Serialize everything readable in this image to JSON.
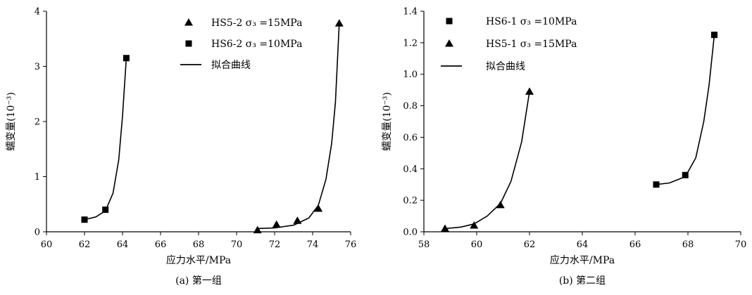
{
  "chart_data": [
    {
      "type": "scatter",
      "xlabel": "应力水平/MPa",
      "ylabel": "蠕变量(10⁻³)",
      "xlim": [
        60,
        76
      ],
      "ylim": [
        0,
        4
      ],
      "xticks": [
        "60",
        "62",
        "64",
        "66",
        "68",
        "70",
        "72",
        "74",
        "76"
      ],
      "yticks": [
        "0",
        "1",
        "2",
        "3",
        "4"
      ],
      "caption": "(a) 第一组",
      "legend_position": "top-right",
      "legend": [
        {
          "marker": "triangle",
          "text": "HS5-2  σ₃ =15MPa"
        },
        {
          "marker": "square",
          "text": "HS6-2  σ₃ =10MPa"
        },
        {
          "marker": "line",
          "text": "拟合曲线"
        }
      ],
      "series": [
        {
          "name": "HS5-2 σ₃ =15MPa",
          "marker": "triangle",
          "points": [
            [
              71.1,
              0.03
            ],
            [
              72.1,
              0.13
            ],
            [
              73.2,
              0.2
            ],
            [
              74.3,
              0.42
            ],
            [
              75.4,
              3.78
            ]
          ],
          "fit": [
            [
              71.1,
              0.06
            ],
            [
              72.0,
              0.07
            ],
            [
              73.0,
              0.12
            ],
            [
              73.8,
              0.25
            ],
            [
              74.3,
              0.48
            ],
            [
              74.7,
              0.95
            ],
            [
              75.0,
              1.6
            ],
            [
              75.2,
              2.35
            ],
            [
              75.4,
              3.78
            ]
          ]
        },
        {
          "name": "HS6-2 σ₃ =10MPa",
          "marker": "square",
          "points": [
            [
              62.0,
              0.22
            ],
            [
              63.1,
              0.4
            ],
            [
              64.2,
              3.15
            ]
          ],
          "fit": [
            [
              62.0,
              0.22
            ],
            [
              62.6,
              0.27
            ],
            [
              63.1,
              0.38
            ],
            [
              63.5,
              0.7
            ],
            [
              63.8,
              1.3
            ],
            [
              64.0,
              2.1
            ],
            [
              64.2,
              3.15
            ]
          ]
        }
      ]
    },
    {
      "type": "scatter",
      "xlabel": "应力水平/MPa",
      "ylabel": "蠕变量(10⁻³)",
      "xlim": [
        58,
        70
      ],
      "ylim": [
        0,
        1.4
      ],
      "xticks": [
        "58",
        "60",
        "62",
        "64",
        "66",
        "68",
        "70"
      ],
      "yticks": [
        "0.0",
        "0.2",
        "0.4",
        "0.6",
        "0.8",
        "1.0",
        "1.2",
        "1.4"
      ],
      "caption": "(b) 第二组",
      "legend_position": "top-left",
      "legend": [
        {
          "marker": "square",
          "text": "HS6-1  σ₃ =10MPa"
        },
        {
          "marker": "triangle",
          "text": "HS5-1  σ₃ =15MPa"
        },
        {
          "marker": "line",
          "text": "拟合曲线"
        }
      ],
      "series": [
        {
          "name": "HS6-1 σ₃ =10MPa",
          "marker": "square",
          "points": [
            [
              66.8,
              0.3
            ],
            [
              67.9,
              0.36
            ],
            [
              69.0,
              1.25
            ]
          ],
          "fit": [
            [
              66.8,
              0.3
            ],
            [
              67.3,
              0.31
            ],
            [
              67.9,
              0.35
            ],
            [
              68.3,
              0.47
            ],
            [
              68.6,
              0.7
            ],
            [
              68.8,
              0.93
            ],
            [
              69.0,
              1.25
            ]
          ]
        },
        {
          "name": "HS5-1 σ₃ =15MPa",
          "marker": "triangle",
          "points": [
            [
              58.8,
              0.02
            ],
            [
              59.9,
              0.04
            ],
            [
              60.9,
              0.17
            ],
            [
              62.0,
              0.89
            ]
          ],
          "fit": [
            [
              58.8,
              0.02
            ],
            [
              59.4,
              0.03
            ],
            [
              59.9,
              0.05
            ],
            [
              60.4,
              0.1
            ],
            [
              60.9,
              0.18
            ],
            [
              61.3,
              0.32
            ],
            [
              61.7,
              0.57
            ],
            [
              62.0,
              0.89
            ]
          ]
        }
      ]
    }
  ]
}
